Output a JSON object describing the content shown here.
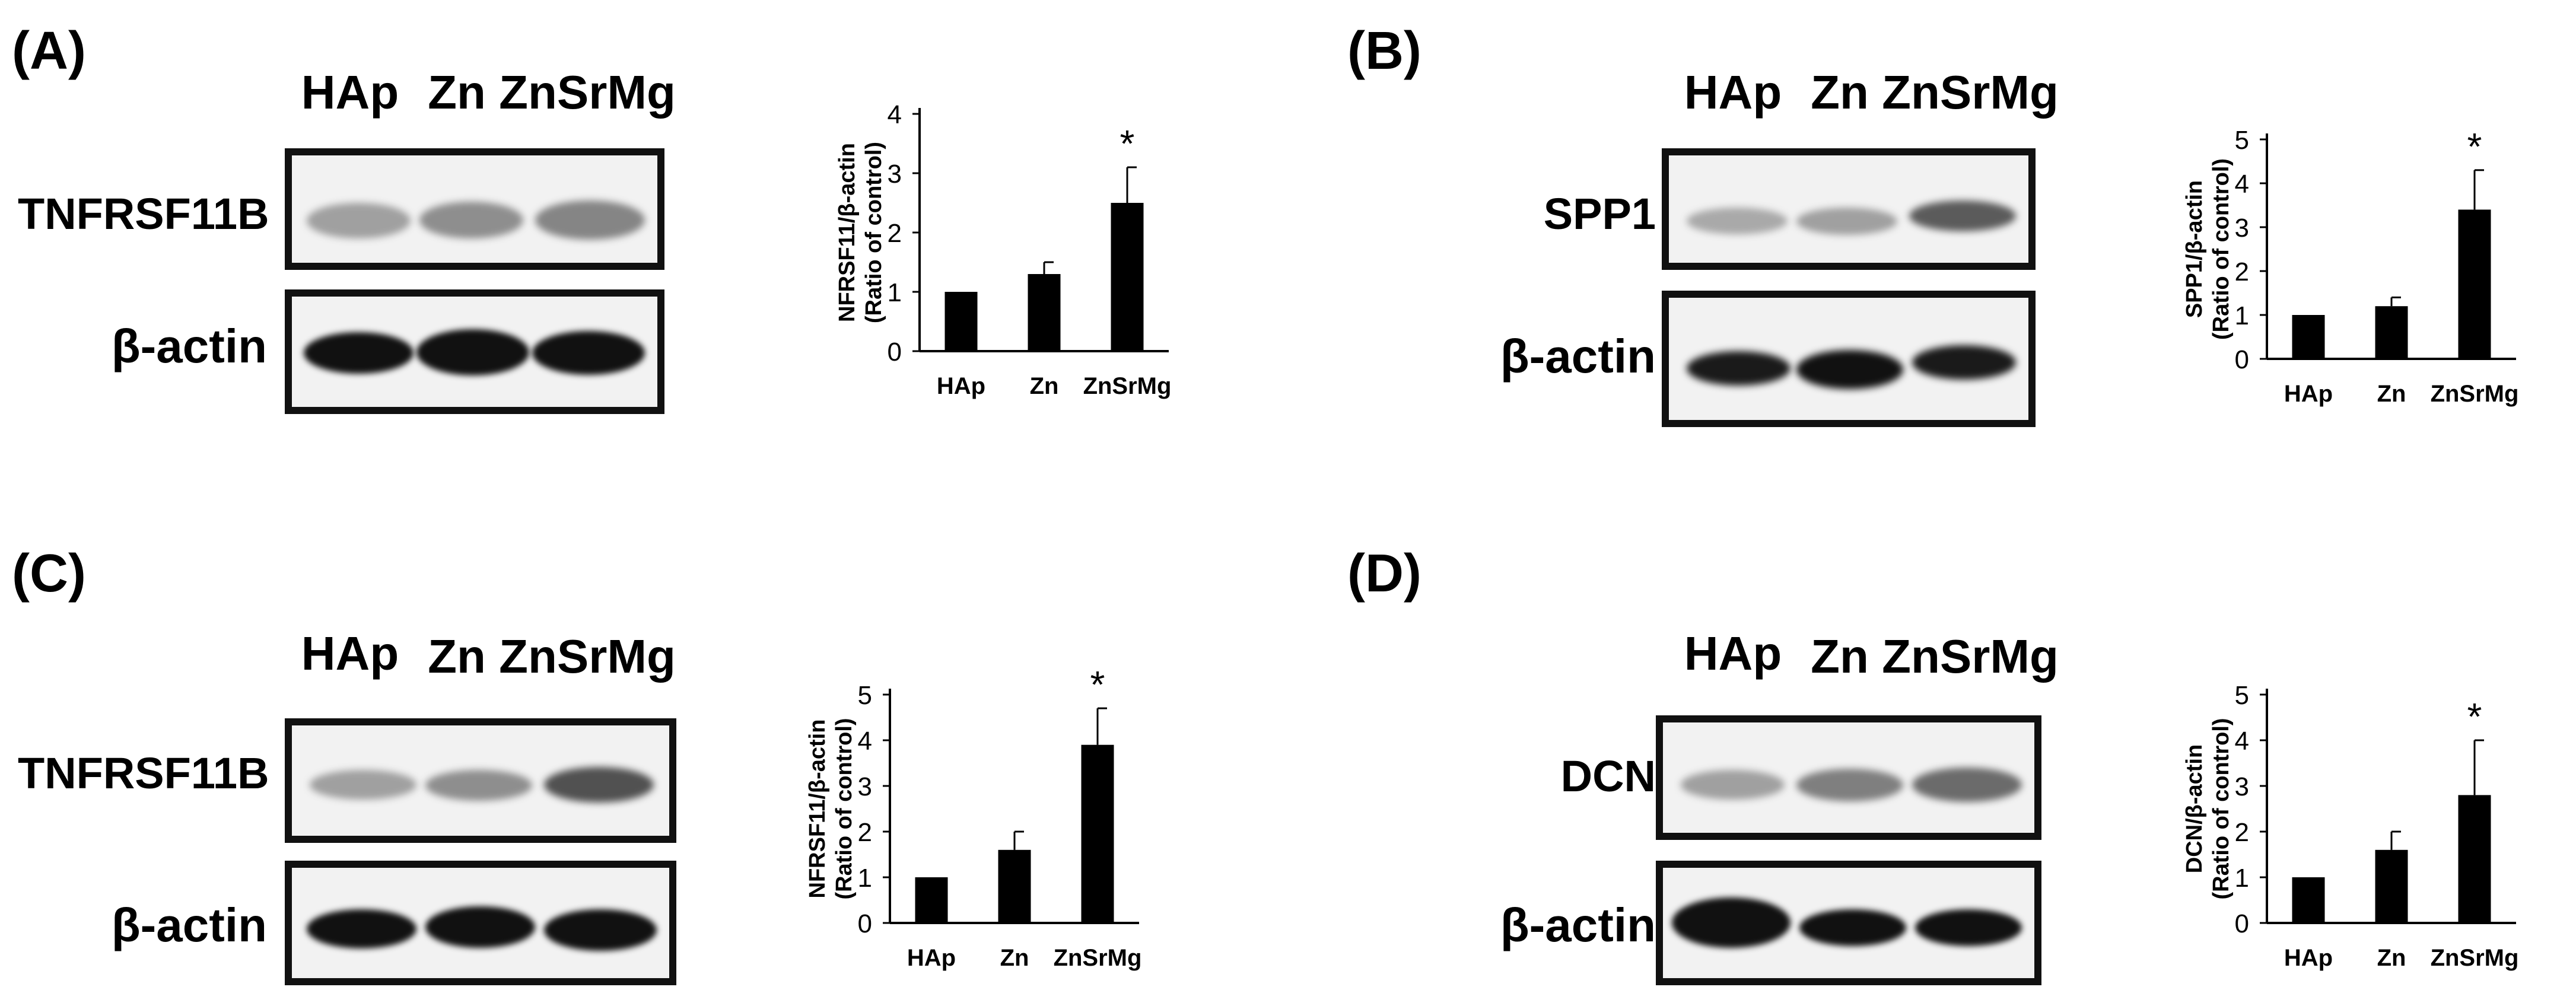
{
  "panels": [
    {
      "label": "(A)",
      "lanes": [
        "HAp",
        "Zn",
        "ZnSrMg"
      ],
      "target_label": "TNFRSF11B",
      "loading_label": "β-actin",
      "target_band_intensity": [
        0.45,
        0.55,
        0.6
      ],
      "loading_band_intensity": [
        1.0,
        1.0,
        1.0
      ]
    },
    {
      "label": "(B)",
      "lanes": [
        "HAp",
        "Zn",
        "ZnSrMg"
      ],
      "target_label": "SPP1",
      "loading_label": "β-actin",
      "target_band_intensity": [
        0.4,
        0.45,
        0.75
      ],
      "loading_band_intensity": [
        0.9,
        1.0,
        0.9
      ]
    },
    {
      "label": "(C)",
      "lanes": [
        "HAp",
        "Zn",
        "ZnSrMg"
      ],
      "target_label": "TNFRSF11B",
      "loading_label": "β-actin",
      "target_band_intensity": [
        0.45,
        0.55,
        0.8
      ],
      "loading_band_intensity": [
        1.0,
        1.0,
        1.0
      ]
    },
    {
      "label": "(D)",
      "lanes": [
        "HAp",
        "Zn",
        "ZnSrMg"
      ],
      "target_label": "DCN",
      "loading_label": "β-actin",
      "target_band_intensity": [
        0.45,
        0.6,
        0.7
      ],
      "loading_band_intensity": [
        1.0,
        1.0,
        1.0
      ]
    }
  ],
  "chart_data": [
    {
      "type": "bar",
      "panel": "(A)",
      "categories": [
        "HAp",
        "Zn",
        "ZnSrMg"
      ],
      "values": [
        1.0,
        1.3,
        2.5
      ],
      "errors": [
        0,
        0.2,
        0.6
      ],
      "significance": [
        "",
        "",
        "*"
      ],
      "ylabel": "NFRSF11/β-actin",
      "ylabel2": "(Ratio of control)",
      "ylim": [
        0,
        4
      ],
      "yticks": [
        0,
        1,
        2,
        3,
        4
      ],
      "bar_color": "#000000"
    },
    {
      "type": "bar",
      "panel": "(B)",
      "categories": [
        "HAp",
        "Zn",
        "ZnSrMg"
      ],
      "values": [
        1.0,
        1.2,
        3.4
      ],
      "errors": [
        0,
        0.2,
        0.9
      ],
      "significance": [
        "",
        "",
        "*"
      ],
      "ylabel": "SPP1/β-actin",
      "ylabel2": "(Ratio of control)",
      "ylim": [
        0,
        5
      ],
      "yticks": [
        0,
        1,
        2,
        3,
        4,
        5
      ],
      "bar_color": "#000000"
    },
    {
      "type": "bar",
      "panel": "(C)",
      "categories": [
        "HAp",
        "Zn",
        "ZnSrMg"
      ],
      "values": [
        1.0,
        1.6,
        3.9
      ],
      "errors": [
        0,
        0.4,
        0.8
      ],
      "significance": [
        "",
        "",
        "*"
      ],
      "ylabel": "NFRSF11/β-actin",
      "ylabel2": "(Ratio of control)",
      "ylim": [
        0,
        5
      ],
      "yticks": [
        0,
        1,
        2,
        3,
        4,
        5
      ],
      "bar_color": "#000000"
    },
    {
      "type": "bar",
      "panel": "(D)",
      "categories": [
        "HAp",
        "Zn",
        "ZnSrMg"
      ],
      "values": [
        1.0,
        1.6,
        2.8
      ],
      "errors": [
        0,
        0.4,
        1.2
      ],
      "significance": [
        "",
        "",
        "*"
      ],
      "ylabel": "DCN/β-actin",
      "ylabel2": "(Ratio of control)",
      "ylim": [
        0,
        5
      ],
      "yticks": [
        0,
        1,
        2,
        3,
        4,
        5
      ],
      "bar_color": "#000000"
    }
  ]
}
